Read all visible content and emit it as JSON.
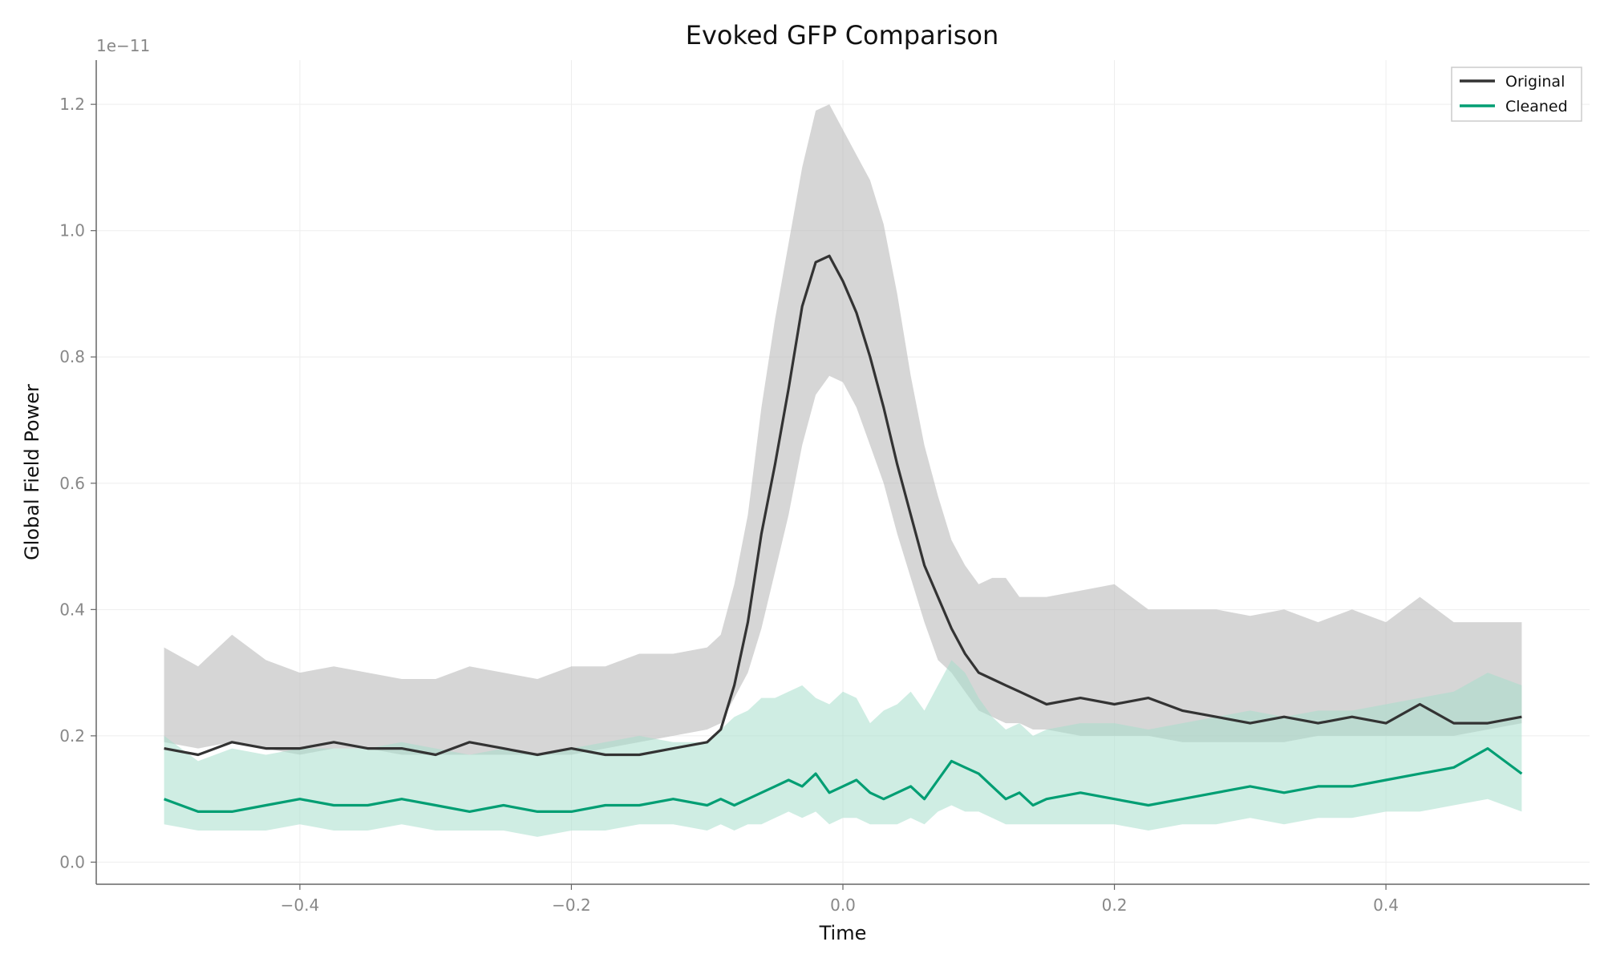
{
  "chart_data": {
    "type": "line",
    "title": "Evoked GFP Comparison",
    "xlabel": "Time",
    "ylabel": "Global Field Power",
    "y_offset_label": "1e−11",
    "xlim": [
      -0.55,
      0.55
    ],
    "ylim": [
      -0.035,
      1.27
    ],
    "xticks": [
      -0.4,
      -0.2,
      0.0,
      0.2,
      0.4
    ],
    "xtick_labels": [
      "−0.4",
      "−0.2",
      "0.0",
      "0.2",
      "0.4"
    ],
    "yticks": [
      0.0,
      0.2,
      0.4,
      0.6,
      0.8,
      1.0,
      1.2
    ],
    "ytick_labels": [
      "0.0",
      "0.2",
      "0.4",
      "0.6",
      "0.8",
      "1.0",
      "1.2"
    ],
    "grid": true,
    "legend_position": "top-right",
    "series": [
      {
        "name": "Original",
        "color": "#333333",
        "band_color": "#bbbbbb",
        "x": [
          -0.5,
          -0.475,
          -0.45,
          -0.425,
          -0.4,
          -0.375,
          -0.35,
          -0.325,
          -0.3,
          -0.275,
          -0.25,
          -0.225,
          -0.2,
          -0.175,
          -0.15,
          -0.125,
          -0.1,
          -0.09,
          -0.08,
          -0.07,
          -0.06,
          -0.05,
          -0.04,
          -0.03,
          -0.02,
          -0.01,
          0.0,
          0.01,
          0.02,
          0.03,
          0.04,
          0.05,
          0.06,
          0.07,
          0.08,
          0.09,
          0.1,
          0.11,
          0.12,
          0.13,
          0.14,
          0.15,
          0.175,
          0.2,
          0.225,
          0.25,
          0.275,
          0.3,
          0.325,
          0.35,
          0.375,
          0.4,
          0.425,
          0.45,
          0.475,
          0.5
        ],
        "mean": [
          0.18,
          0.17,
          0.19,
          0.18,
          0.18,
          0.19,
          0.18,
          0.18,
          0.17,
          0.19,
          0.18,
          0.17,
          0.18,
          0.17,
          0.17,
          0.18,
          0.19,
          0.21,
          0.28,
          0.38,
          0.52,
          0.63,
          0.75,
          0.88,
          0.95,
          0.96,
          0.92,
          0.87,
          0.8,
          0.72,
          0.63,
          0.55,
          0.47,
          0.42,
          0.37,
          0.33,
          0.3,
          0.29,
          0.28,
          0.27,
          0.26,
          0.25,
          0.26,
          0.25,
          0.26,
          0.24,
          0.23,
          0.22,
          0.23,
          0.22,
          0.23,
          0.22,
          0.25,
          0.22,
          0.22,
          0.23
        ],
        "upper": [
          0.34,
          0.31,
          0.36,
          0.32,
          0.3,
          0.31,
          0.3,
          0.29,
          0.29,
          0.31,
          0.3,
          0.29,
          0.31,
          0.31,
          0.33,
          0.33,
          0.34,
          0.36,
          0.44,
          0.55,
          0.72,
          0.86,
          0.98,
          1.1,
          1.19,
          1.2,
          1.16,
          1.12,
          1.08,
          1.01,
          0.9,
          0.77,
          0.66,
          0.58,
          0.51,
          0.47,
          0.44,
          0.45,
          0.45,
          0.42,
          0.42,
          0.42,
          0.43,
          0.44,
          0.4,
          0.4,
          0.4,
          0.39,
          0.4,
          0.38,
          0.4,
          0.38,
          0.42,
          0.38,
          0.38,
          0.38
        ],
        "lower": [
          0.19,
          0.18,
          0.19,
          0.18,
          0.17,
          0.18,
          0.18,
          0.17,
          0.17,
          0.17,
          0.17,
          0.17,
          0.17,
          0.18,
          0.19,
          0.2,
          0.21,
          0.22,
          0.26,
          0.3,
          0.37,
          0.46,
          0.55,
          0.66,
          0.74,
          0.77,
          0.76,
          0.72,
          0.66,
          0.6,
          0.52,
          0.45,
          0.38,
          0.32,
          0.3,
          0.27,
          0.24,
          0.23,
          0.22,
          0.22,
          0.21,
          0.21,
          0.2,
          0.2,
          0.2,
          0.19,
          0.19,
          0.19,
          0.19,
          0.2,
          0.2,
          0.2,
          0.2,
          0.2,
          0.21,
          0.22
        ]
      },
      {
        "name": "Cleaned",
        "color": "#009e73",
        "band_color": "#a8dfcc",
        "x": [
          -0.5,
          -0.475,
          -0.45,
          -0.425,
          -0.4,
          -0.375,
          -0.35,
          -0.325,
          -0.3,
          -0.275,
          -0.25,
          -0.225,
          -0.2,
          -0.175,
          -0.15,
          -0.125,
          -0.1,
          -0.09,
          -0.08,
          -0.07,
          -0.06,
          -0.05,
          -0.04,
          -0.03,
          -0.02,
          -0.01,
          0.0,
          0.01,
          0.02,
          0.03,
          0.04,
          0.05,
          0.06,
          0.07,
          0.08,
          0.09,
          0.1,
          0.11,
          0.12,
          0.13,
          0.14,
          0.15,
          0.175,
          0.2,
          0.225,
          0.25,
          0.275,
          0.3,
          0.325,
          0.35,
          0.375,
          0.4,
          0.425,
          0.45,
          0.475,
          0.5
        ],
        "mean": [
          0.1,
          0.08,
          0.08,
          0.09,
          0.1,
          0.09,
          0.09,
          0.1,
          0.09,
          0.08,
          0.09,
          0.08,
          0.08,
          0.09,
          0.09,
          0.1,
          0.09,
          0.1,
          0.09,
          0.1,
          0.11,
          0.12,
          0.13,
          0.12,
          0.14,
          0.11,
          0.12,
          0.13,
          0.11,
          0.1,
          0.11,
          0.12,
          0.1,
          0.13,
          0.16,
          0.15,
          0.14,
          0.12,
          0.1,
          0.11,
          0.09,
          0.1,
          0.11,
          0.1,
          0.09,
          0.1,
          0.11,
          0.12,
          0.11,
          0.12,
          0.12,
          0.13,
          0.14,
          0.15,
          0.18,
          0.14
        ],
        "upper": [
          0.2,
          0.16,
          0.18,
          0.17,
          0.18,
          0.18,
          0.18,
          0.19,
          0.18,
          0.17,
          0.18,
          0.17,
          0.18,
          0.19,
          0.2,
          0.19,
          0.19,
          0.21,
          0.23,
          0.24,
          0.26,
          0.26,
          0.27,
          0.28,
          0.26,
          0.25,
          0.27,
          0.26,
          0.22,
          0.24,
          0.25,
          0.27,
          0.24,
          0.28,
          0.32,
          0.3,
          0.26,
          0.23,
          0.21,
          0.22,
          0.2,
          0.21,
          0.22,
          0.22,
          0.21,
          0.22,
          0.23,
          0.24,
          0.23,
          0.24,
          0.24,
          0.25,
          0.26,
          0.27,
          0.3,
          0.28
        ],
        "lower": [
          0.06,
          0.05,
          0.05,
          0.05,
          0.06,
          0.05,
          0.05,
          0.06,
          0.05,
          0.05,
          0.05,
          0.04,
          0.05,
          0.05,
          0.06,
          0.06,
          0.05,
          0.06,
          0.05,
          0.06,
          0.06,
          0.07,
          0.08,
          0.07,
          0.08,
          0.06,
          0.07,
          0.07,
          0.06,
          0.06,
          0.06,
          0.07,
          0.06,
          0.08,
          0.09,
          0.08,
          0.08,
          0.07,
          0.06,
          0.06,
          0.06,
          0.06,
          0.06,
          0.06,
          0.05,
          0.06,
          0.06,
          0.07,
          0.06,
          0.07,
          0.07,
          0.08,
          0.08,
          0.09,
          0.1,
          0.08
        ]
      }
    ]
  }
}
